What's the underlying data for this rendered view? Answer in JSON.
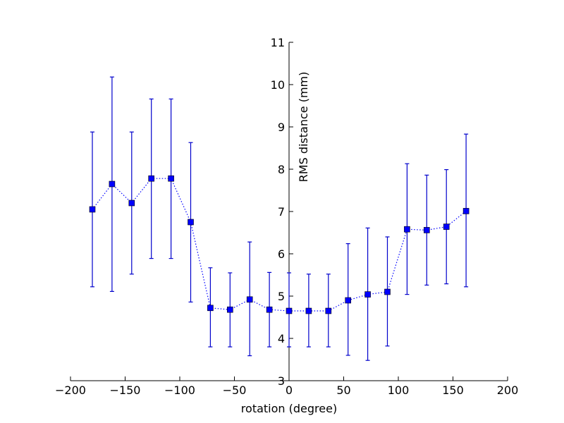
{
  "chart_data": {
    "type": "scatter",
    "title": "",
    "xlabel": "rotation (degree)",
    "ylabel": "RMS distance (mm)",
    "xlim": [
      -200,
      200
    ],
    "ylim": [
      3,
      11
    ],
    "xticks": [
      "−200",
      "−150",
      "−100",
      "−50",
      "0",
      "50",
      "100",
      "150",
      "200"
    ],
    "xtick_values": [
      -200,
      -150,
      -100,
      -50,
      0,
      50,
      100,
      150,
      200
    ],
    "yticks": [
      "3",
      "4",
      "5",
      "6",
      "7",
      "8",
      "9",
      "10",
      "11"
    ],
    "ytick_values": [
      3,
      4,
      5,
      6,
      7,
      8,
      9,
      10,
      11
    ],
    "grid": false,
    "spines": "centered",
    "marker": "square",
    "line_style": "dotted",
    "color": "#0000ff",
    "errorbar_color": "#0000cc",
    "x": [
      -180,
      -162,
      -144,
      -126,
      -108,
      -90,
      -72,
      -54,
      -36,
      -18,
      0,
      18,
      36,
      54,
      72,
      90,
      108,
      126,
      144,
      162
    ],
    "y": [
      7.05,
      7.65,
      7.2,
      7.78,
      7.78,
      6.75,
      4.72,
      4.68,
      4.92,
      4.68,
      4.65,
      4.65,
      4.65,
      4.9,
      5.04,
      5.1,
      6.58,
      6.56,
      6.64,
      7.01
    ],
    "yerr_low": [
      5.22,
      5.11,
      5.52,
      5.89,
      5.89,
      4.86,
      3.8,
      3.8,
      3.59,
      3.8,
      3.8,
      3.8,
      3.8,
      3.6,
      3.48,
      3.82,
      5.04,
      5.26,
      5.29,
      5.22
    ],
    "yerr_high": [
      8.88,
      10.18,
      8.88,
      9.66,
      9.66,
      8.63,
      5.67,
      5.55,
      6.28,
      5.56,
      5.55,
      5.52,
      5.52,
      6.24,
      6.61,
      6.4,
      8.13,
      7.86,
      7.99,
      8.83
    ]
  }
}
